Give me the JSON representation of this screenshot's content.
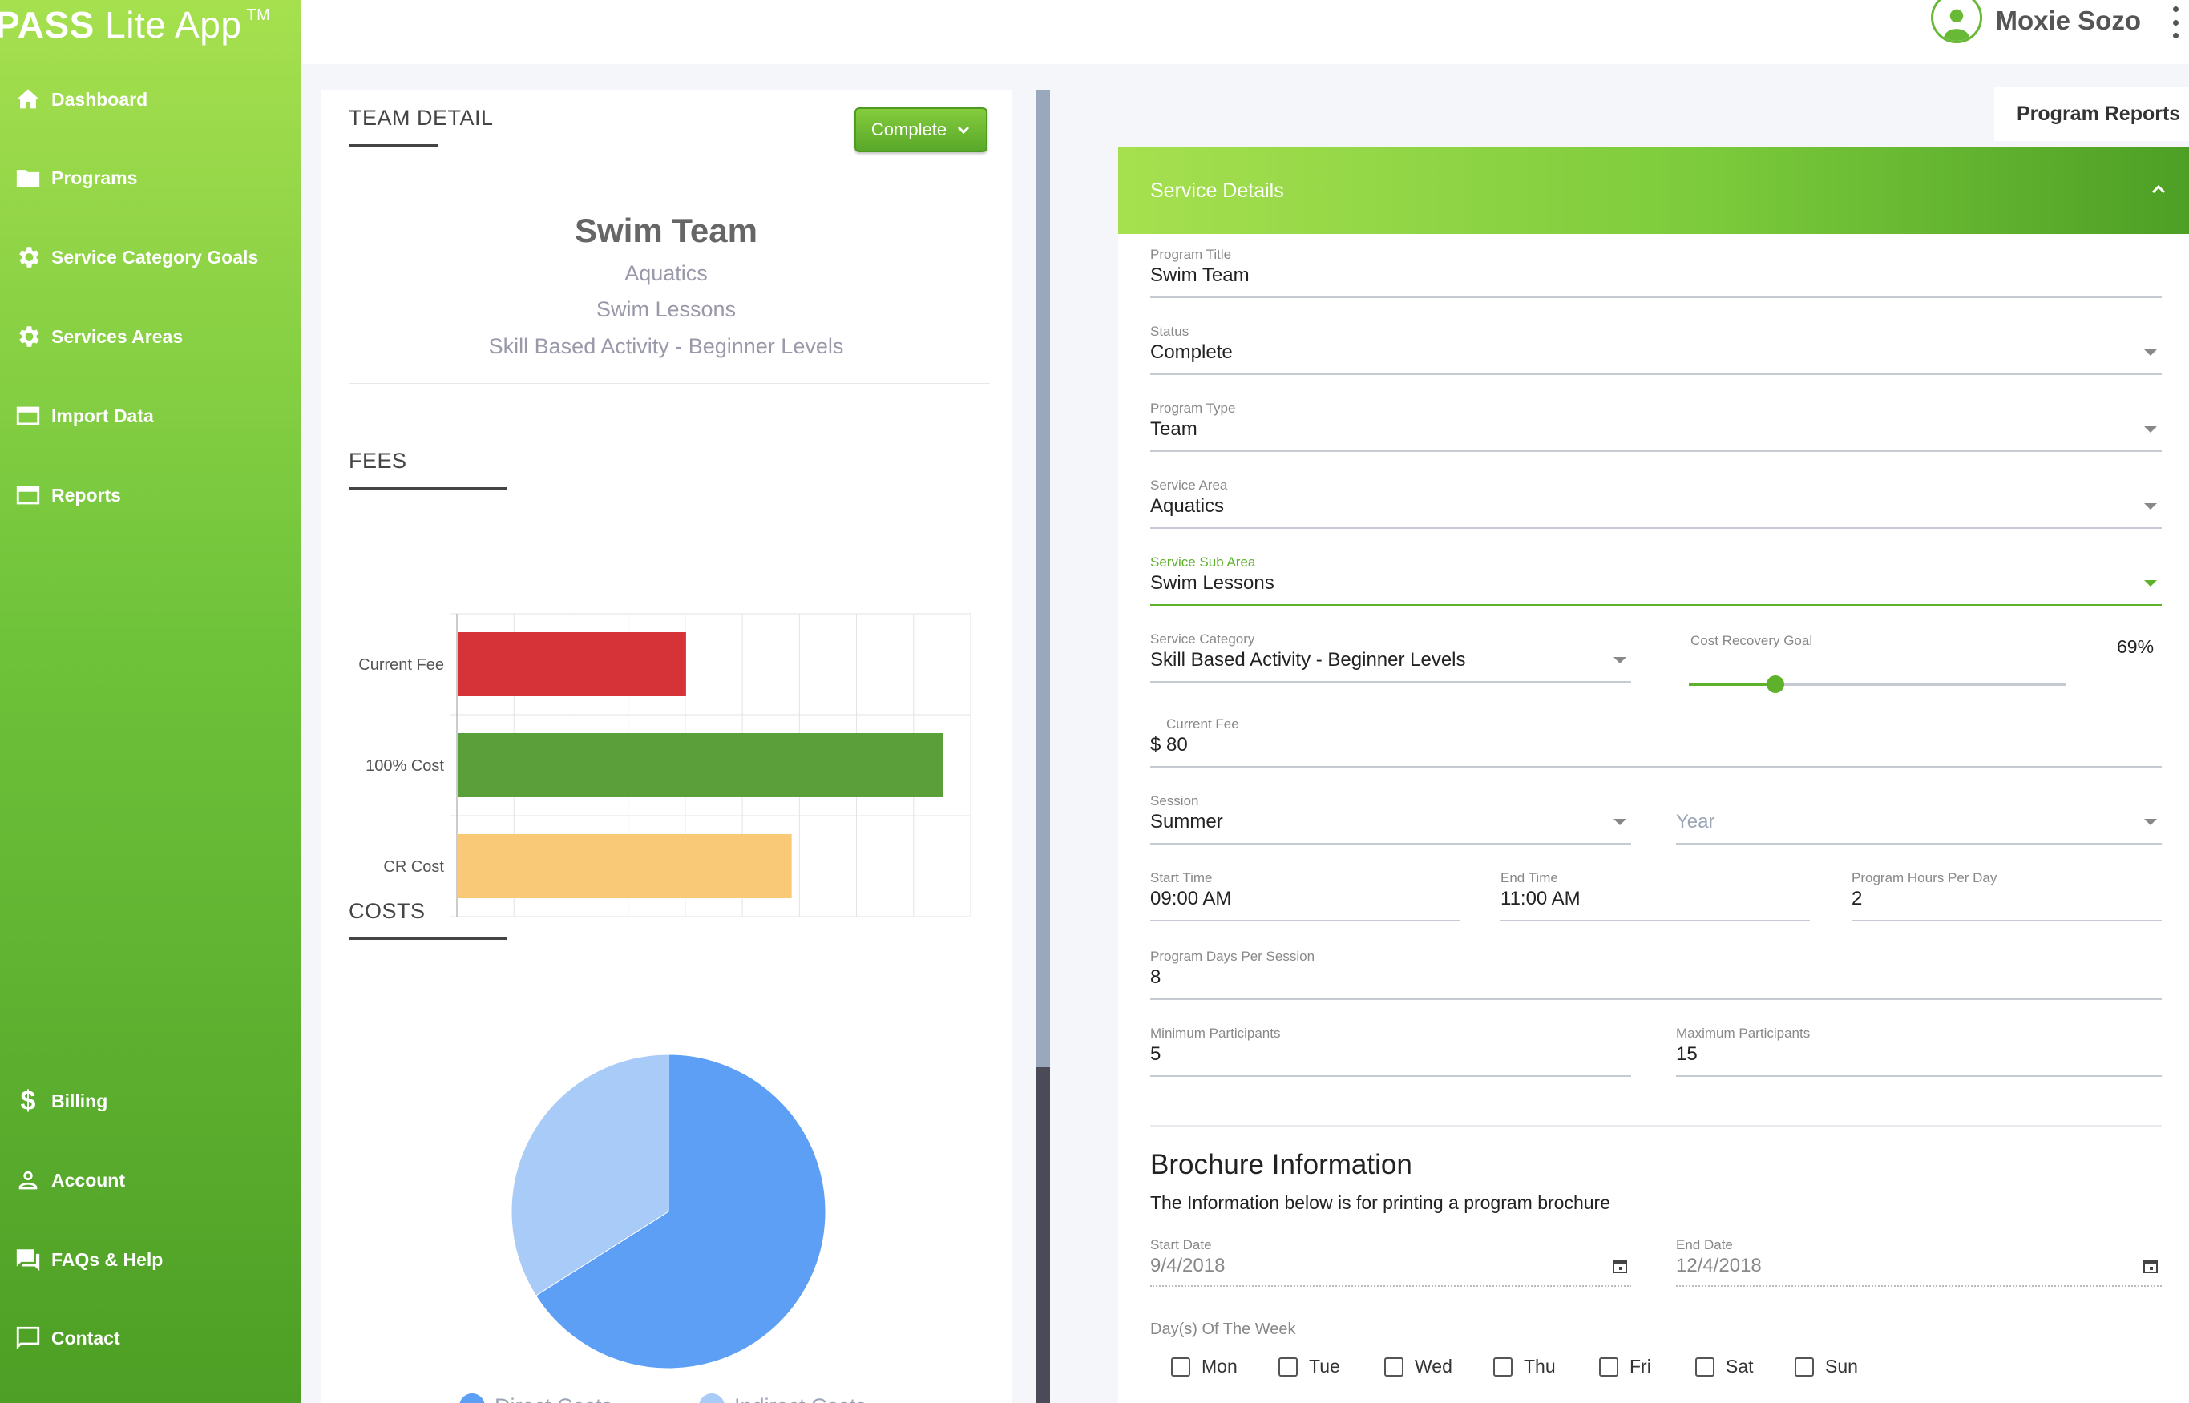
{
  "app": {
    "brand": "PASS Lite App",
    "brand_bold": "PASS",
    "brand_rest": " Lite App",
    "tm": "TM"
  },
  "sidebar": {
    "items": [
      {
        "label": "Dashboard",
        "icon": "home-icon"
      },
      {
        "label": "Programs",
        "icon": "folder-icon"
      },
      {
        "label": "Service Category Goals",
        "icon": "gear-icon"
      },
      {
        "label": "Services Areas",
        "icon": "gear-icon"
      },
      {
        "label": "Import Data",
        "icon": "window-icon"
      },
      {
        "label": "Reports",
        "icon": "window-icon"
      },
      {
        "label": "Billing",
        "icon": "dollar-icon"
      },
      {
        "label": "Account",
        "icon": "person-icon"
      },
      {
        "label": "FAQs & Help",
        "icon": "chat-icon"
      },
      {
        "label": "Contact",
        "icon": "message-icon"
      }
    ]
  },
  "user": {
    "name": "Moxie Sozo"
  },
  "team_detail": {
    "heading": "TEAM DETAIL",
    "status_button": "Complete",
    "title": "Swim Team",
    "subtitles": [
      "Aquatics",
      "Swim Lessons",
      "Skill Based Activity - Beginner Levels"
    ]
  },
  "fees": {
    "heading": "FEES"
  },
  "costs": {
    "heading": "COSTS",
    "legend": [
      "Direct Costs",
      "Indirect Costs"
    ]
  },
  "chart_data": [
    {
      "type": "bar",
      "orientation": "horizontal",
      "title": "",
      "categories": [
        "Current Fee",
        "100% Cost",
        "CR Cost"
      ],
      "values": [
        80,
        170,
        117
      ],
      "colors": [
        "#d63339",
        "#5a9f3a",
        "#f9c978"
      ],
      "xlim": [
        0,
        180
      ],
      "xticks": [
        0,
        20,
        40,
        60,
        80,
        100,
        120,
        140,
        160,
        180
      ],
      "grid": true
    },
    {
      "type": "pie",
      "title": "",
      "categories": [
        "Direct Costs",
        "Indirect Costs"
      ],
      "values": [
        66,
        34
      ],
      "colors": [
        "#5c9ff4",
        "#a9cbf7"
      ],
      "legend": "bottom"
    }
  ],
  "tabs": {
    "program_reports": "Program Reports"
  },
  "service_details": {
    "heading": "Service Details",
    "program_title": {
      "label": "Program Title",
      "value": "Swim Team"
    },
    "status": {
      "label": "Status",
      "value": "Complete"
    },
    "program_type": {
      "label": "Program Type",
      "value": "Team"
    },
    "service_area": {
      "label": "Service Area",
      "value": "Aquatics"
    },
    "service_sub_area": {
      "label": "Service Sub Area",
      "value": "Swim Lessons"
    },
    "service_category": {
      "label": "Service Category",
      "value": "Skill Based Activity - Beginner Levels"
    },
    "cost_recovery_goal": {
      "label": "Cost Recovery Goal",
      "value": "69%",
      "level": 0.23
    },
    "current_fee": {
      "label": "Current Fee",
      "value": "$ 80"
    },
    "session": {
      "label": "Session",
      "value": "Summer"
    },
    "year": {
      "placeholder": "Year"
    },
    "start_time": {
      "label": "Start Time",
      "value": "09:00 AM"
    },
    "end_time": {
      "label": "End Time",
      "value": "11:00 AM"
    },
    "hours_per_day": {
      "label": "Program Hours Per Day",
      "value": "2"
    },
    "days_per_session": {
      "label": "Program Days Per Session",
      "value": "8"
    },
    "min_participants": {
      "label": "Minimum Participants",
      "value": "5"
    },
    "max_participants": {
      "label": "Maximum Participants",
      "value": "15"
    }
  },
  "brochure": {
    "title": "Brochure Information",
    "note": "The Information below is for printing a program brochure",
    "start_date": {
      "label": "Start Date",
      "value": "9/4/2018"
    },
    "end_date": {
      "label": "End Date",
      "value": "12/4/2018"
    },
    "days_label": "Day(s) Of The Week",
    "days": [
      "Mon",
      "Tue",
      "Wed",
      "Thu",
      "Fri",
      "Sat",
      "Sun"
    ]
  },
  "colors": {
    "accent": "#5eb12a",
    "sidebar_top": "#a6e04f",
    "sidebar_bottom": "#4d9f25"
  }
}
